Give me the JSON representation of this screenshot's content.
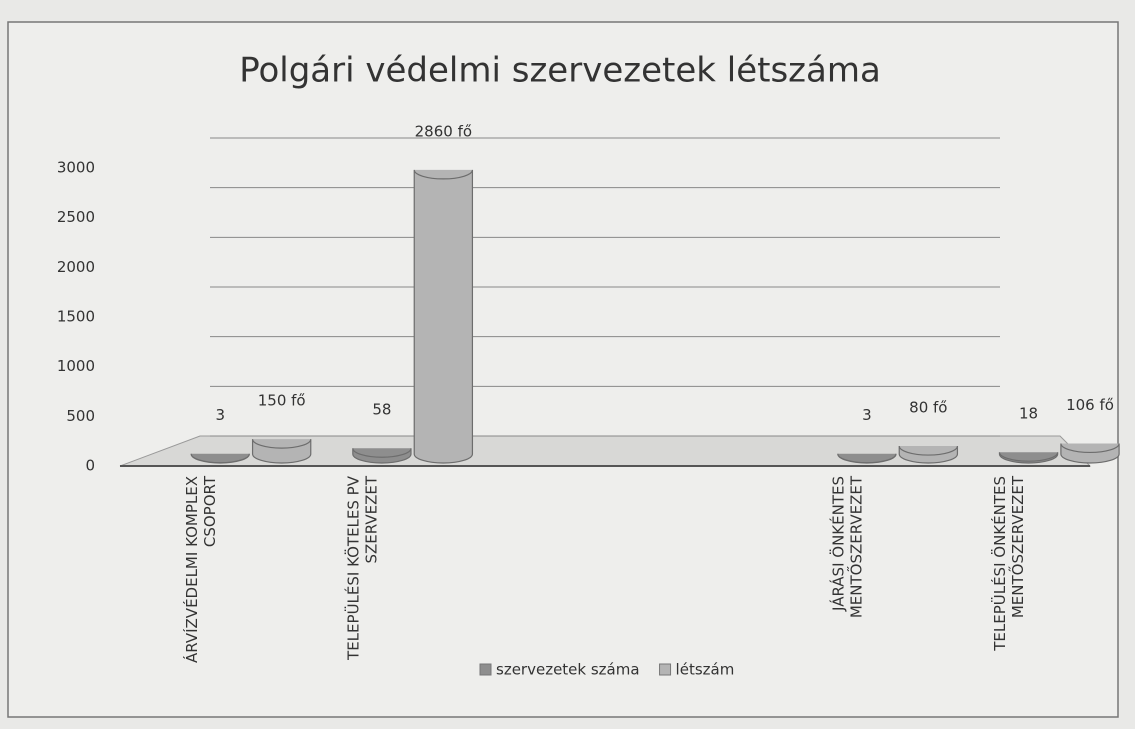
{
  "chart_data": {
    "type": "bar",
    "title": "Polgári védelmi szervezetek létszáma",
    "categories": [
      "ÁRVÍZVÉDELMI KOMPLEX\nCSOPORT",
      "TELEPÜLÉSI KÖTELES PV\nSZERVEZET",
      null,
      null,
      "JÁRÁSI ÖNKÉNTES\nMENTŐSZERVEZET",
      "TELEPÜLÉSI ÖNKÉNTES\nMENTŐSZERVEZET"
    ],
    "series": [
      {
        "name": "szervezetek száma",
        "color": "#8e8e8e",
        "values": [
          3,
          58,
          null,
          null,
          3,
          18
        ]
      },
      {
        "name": "létszám",
        "color": "#b4b4b4",
        "values": [
          150,
          2860,
          null,
          null,
          80,
          106
        ],
        "value_labels": [
          "150 fő",
          "2860 fő",
          null,
          null,
          "80 fő",
          "106 fő"
        ]
      }
    ],
    "ylim": [
      0,
      3000
    ],
    "yticks": [
      0,
      500,
      1000,
      1500,
      2000,
      2500,
      3000
    ],
    "grid": true,
    "legend": "bottom"
  }
}
